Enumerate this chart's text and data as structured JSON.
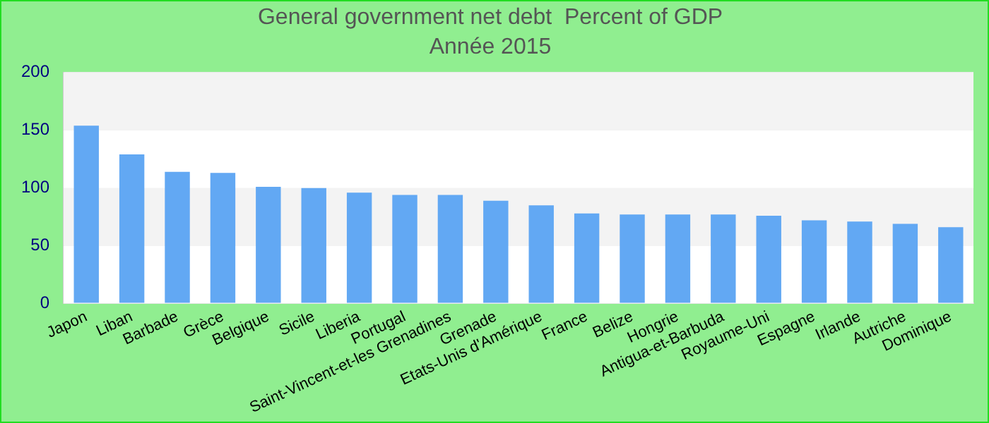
{
  "chart_data": {
    "type": "bar",
    "title": "General government net debt  Percent of GDP",
    "subtitle": "Année 2015",
    "categories": [
      "Japon",
      "Liban",
      "Barbade",
      "Grèce",
      "Belgique",
      "Sicile",
      "Liberia",
      "Portugal",
      "Saint-Vincent-et-les Grenadines",
      "Grenade",
      "Etats-Unis d'Amérique",
      "France",
      "Belize",
      "Hongrie",
      "Antigua-et-Barbuda",
      "Royaume-Uni",
      "Espagne",
      "Irlande",
      "Autriche",
      "Dominique"
    ],
    "values": [
      154,
      129,
      114,
      113,
      101,
      100,
      96,
      94,
      94,
      89,
      85,
      78,
      77,
      77,
      77,
      76,
      72,
      71,
      69,
      66
    ],
    "color": "#62a8f3",
    "ylim": [
      0,
      200
    ],
    "yticks": [
      0,
      50,
      100,
      150,
      200
    ],
    "grid": "y",
    "legend": false
  }
}
